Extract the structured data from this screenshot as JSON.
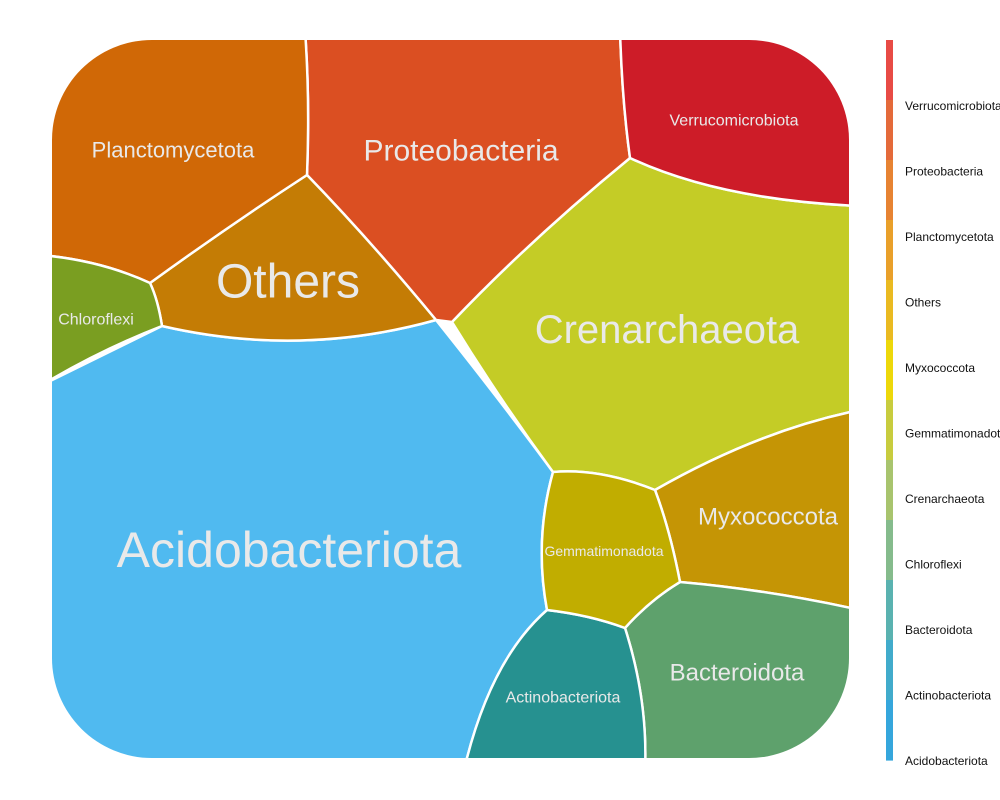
{
  "chart_data": {
    "type": "voronoi-treemap",
    "cells": [
      {
        "name": "Acidobacteriota",
        "color": "#50BAF0"
      },
      {
        "name": "Crenarchaeota",
        "color": "#C4CC26"
      },
      {
        "name": "Proteobacteria",
        "color": "#DB4F22"
      },
      {
        "name": "Others",
        "color": "#C47C05"
      },
      {
        "name": "Planctomycetota",
        "color": "#D06806"
      },
      {
        "name": "Verrucomicrobiota",
        "color": "#CD1C28"
      },
      {
        "name": "Myxococcota",
        "color": "#C59505"
      },
      {
        "name": "Bacteroidota",
        "color": "#5EA16C"
      },
      {
        "name": "Actinobacteriota",
        "color": "#269190"
      },
      {
        "name": "Gemmatimonadota",
        "color": "#C1AD00"
      },
      {
        "name": "Chloroflexi",
        "color": "#7A9E21"
      }
    ],
    "legend": {
      "position": "right",
      "colors": [
        "#E84B45",
        "#E46A3A",
        "#E78332",
        "#E9A02A",
        "#EABA21",
        "#EDD80A",
        "#C8CC3E",
        "#A8C46E",
        "#85BB8C",
        "#5AB2B0",
        "#41ABCB",
        "#35A6DC"
      ],
      "labels": [
        "Verrucomicrobiota",
        "Proteobacteria",
        "Planctomycetota",
        "Others",
        "Myxococcota",
        "Gemmatimonadota",
        "Crenarchaeota",
        "Chloroflexi",
        "Bacteroidota",
        "Actinobacteriota",
        "Acidobacteriota"
      ]
    }
  }
}
